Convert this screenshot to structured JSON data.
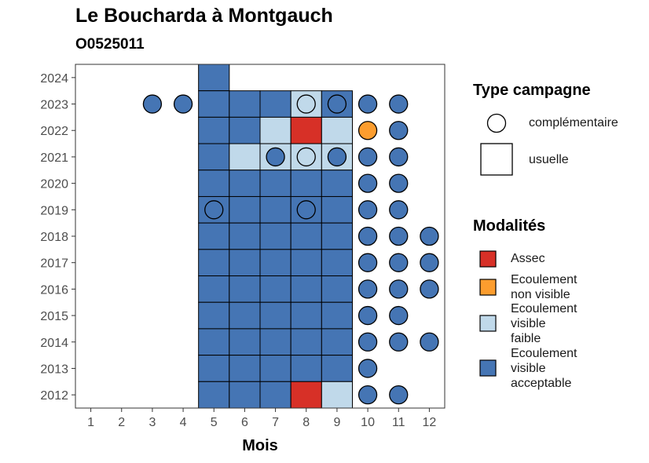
{
  "chart_data": {
    "type": "heatmap",
    "title": "Le Boucharda à Montgauch",
    "subtitle": "O0525011",
    "xlabel": "Mois",
    "ylabel": "",
    "x_ticks": [
      "1",
      "2",
      "3",
      "4",
      "5",
      "6",
      "7",
      "8",
      "9",
      "10",
      "11",
      "12"
    ],
    "y_ticks": [
      "2012",
      "2013",
      "2014",
      "2015",
      "2016",
      "2017",
      "2018",
      "2019",
      "2020",
      "2021",
      "2022",
      "2023",
      "2024"
    ],
    "xlim": [
      0.5,
      12.5
    ],
    "ylim": [
      2011.5,
      2024.5
    ],
    "grid": false,
    "legend_position": "right",
    "legend_campaign": {
      "title": "Type campagne",
      "items": [
        {
          "shape": "circle",
          "label": "complémentaire"
        },
        {
          "shape": "square",
          "label": "usuelle"
        }
      ]
    },
    "legend_modalites": {
      "title": "Modalités",
      "items": [
        {
          "key": "assec",
          "label": "Assec",
          "color": "#d73027"
        },
        {
          "key": "nonvisible",
          "label": "Ecoulement\nnon visible",
          "color": "#fc9d2e"
        },
        {
          "key": "faible",
          "label": "Ecoulement\nvisible\nfaible",
          "color": "#c0d9ea"
        },
        {
          "key": "acceptable",
          "label": "Ecoulement\nvisible\nacceptable",
          "color": "#4575b4"
        }
      ]
    },
    "usuelle": [
      {
        "year": 2024,
        "months": {
          "5": "acceptable"
        }
      },
      {
        "year": 2023,
        "months": {
          "5": "acceptable",
          "6": "acceptable",
          "7": "acceptable",
          "8": "faible",
          "9": "acceptable"
        }
      },
      {
        "year": 2022,
        "months": {
          "5": "acceptable",
          "6": "acceptable",
          "7": "faible",
          "8": "assec",
          "9": "faible"
        }
      },
      {
        "year": 2021,
        "months": {
          "5": "acceptable",
          "6": "faible",
          "7": "faible",
          "8": "faible",
          "9": "faible"
        }
      },
      {
        "year": 2020,
        "months": {
          "5": "acceptable",
          "6": "acceptable",
          "7": "acceptable",
          "8": "acceptable",
          "9": "acceptable"
        }
      },
      {
        "year": 2019,
        "months": {
          "5": "acceptable",
          "6": "acceptable",
          "7": "acceptable",
          "8": "acceptable",
          "9": "acceptable"
        }
      },
      {
        "year": 2018,
        "months": {
          "5": "acceptable",
          "6": "acceptable",
          "7": "acceptable",
          "8": "acceptable",
          "9": "acceptable"
        }
      },
      {
        "year": 2017,
        "months": {
          "5": "acceptable",
          "6": "acceptable",
          "7": "acceptable",
          "8": "acceptable",
          "9": "acceptable"
        }
      },
      {
        "year": 2016,
        "months": {
          "5": "acceptable",
          "6": "acceptable",
          "7": "acceptable",
          "8": "acceptable",
          "9": "acceptable"
        }
      },
      {
        "year": 2015,
        "months": {
          "5": "acceptable",
          "6": "acceptable",
          "7": "acceptable",
          "8": "acceptable",
          "9": "acceptable"
        }
      },
      {
        "year": 2014,
        "months": {
          "5": "acceptable",
          "6": "acceptable",
          "7": "acceptable",
          "8": "acceptable",
          "9": "acceptable"
        }
      },
      {
        "year": 2013,
        "months": {
          "5": "acceptable",
          "6": "acceptable",
          "7": "acceptable",
          "8": "acceptable",
          "9": "acceptable"
        }
      },
      {
        "year": 2012,
        "months": {
          "5": "acceptable",
          "6": "acceptable",
          "7": "acceptable",
          "8": "assec",
          "9": "faible"
        }
      }
    ],
    "complementaire": [
      {
        "year": 2023,
        "months": {
          "3": "acceptable",
          "4": "acceptable",
          "8": "faible",
          "9": "acceptable",
          "10": "acceptable",
          "11": "acceptable"
        }
      },
      {
        "year": 2022,
        "months": {
          "10": "nonvisible",
          "11": "acceptable"
        }
      },
      {
        "year": 2021,
        "months": {
          "7": "acceptable",
          "8": "faible",
          "9": "acceptable",
          "10": "acceptable",
          "11": "acceptable"
        }
      },
      {
        "year": 2020,
        "months": {
          "10": "acceptable",
          "11": "acceptable"
        }
      },
      {
        "year": 2019,
        "months": {
          "5": "acceptable",
          "8": "acceptable",
          "10": "acceptable",
          "11": "acceptable"
        }
      },
      {
        "year": 2018,
        "months": {
          "10": "acceptable",
          "11": "acceptable",
          "12": "acceptable"
        }
      },
      {
        "year": 2017,
        "months": {
          "10": "acceptable",
          "11": "acceptable",
          "12": "acceptable"
        }
      },
      {
        "year": 2016,
        "months": {
          "10": "acceptable",
          "11": "acceptable",
          "12": "acceptable"
        }
      },
      {
        "year": 2015,
        "months": {
          "10": "acceptable",
          "11": "acceptable"
        }
      },
      {
        "year": 2014,
        "months": {
          "10": "acceptable",
          "11": "acceptable",
          "12": "acceptable"
        }
      },
      {
        "year": 2013,
        "months": {
          "10": "acceptable"
        }
      },
      {
        "year": 2012,
        "months": {
          "10": "acceptable",
          "11": "acceptable"
        }
      }
    ]
  }
}
